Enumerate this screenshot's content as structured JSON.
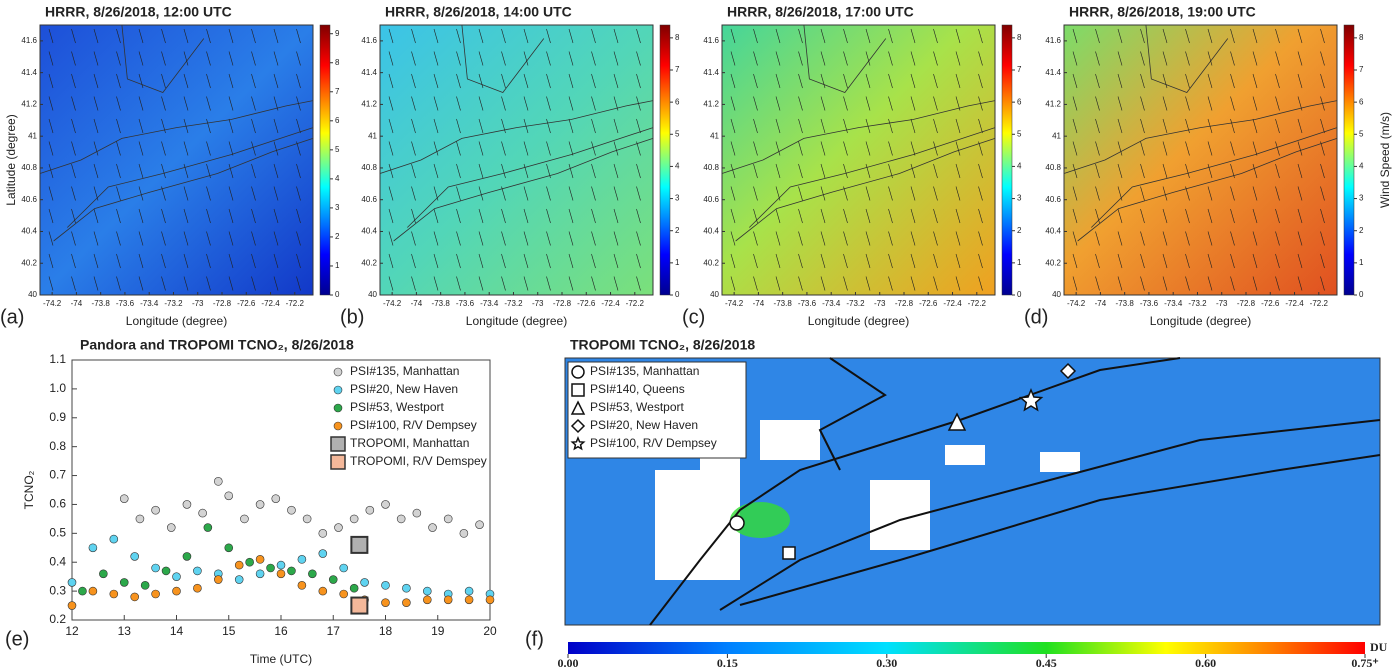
{
  "chart_data": [
    {
      "type": "map",
      "title": "HRRR, 8/26/2018, 12:00 UTC",
      "panel_label": "(a)",
      "x_label": "Longitude (degree)",
      "y_label": "Latitude (degree)",
      "xlim": [
        -74.3,
        -72.05
      ],
      "xticks": [
        -74.2,
        -74,
        -73.8,
        -73.6,
        -73.4,
        -73.2,
        -73,
        -72.8,
        -72.6,
        -72.4,
        -72.2
      ],
      "ylim": [
        40,
        41.7
      ],
      "yticks": [
        40,
        40.2,
        40.4,
        40.6,
        40.8,
        41,
        41.2,
        41.4,
        41.6
      ],
      "clim": [
        0,
        9.3
      ],
      "cticks": [
        0,
        1,
        2,
        3,
        4,
        5,
        6,
        7,
        8,
        9
      ]
    },
    {
      "type": "map",
      "title": "HRRR, 8/26/2018, 14:00 UTC",
      "panel_label": "(b)",
      "x_label": "Longitude (degree)",
      "xlim": [
        -74.3,
        -72.05
      ],
      "xticks": [
        -74.2,
        -74,
        -73.8,
        -73.6,
        -73.4,
        -73.2,
        -73,
        -72.8,
        -72.6,
        -72.4,
        -72.2
      ],
      "ylim": [
        40,
        41.7
      ],
      "yticks": [
        40,
        40.2,
        40.4,
        40.6,
        40.8,
        41,
        41.2,
        41.4,
        41.6
      ],
      "clim": [
        0,
        8.4
      ],
      "cticks": [
        0,
        1,
        2,
        3,
        4,
        5,
        6,
        7,
        8
      ]
    },
    {
      "type": "map",
      "title": "HRRR, 8/26/2018, 17:00 UTC",
      "panel_label": "(c)",
      "x_label": "Longitude (degree)",
      "xlim": [
        -74.3,
        -72.05
      ],
      "xticks": [
        -74.2,
        -74,
        -73.8,
        -73.6,
        -73.4,
        -73.2,
        -73,
        -72.8,
        -72.6,
        -72.4,
        -72.2
      ],
      "ylim": [
        40,
        41.7
      ],
      "yticks": [
        40,
        40.2,
        40.4,
        40.6,
        40.8,
        41,
        41.2,
        41.4,
        41.6
      ],
      "clim": [
        0,
        8.4
      ],
      "cticks": [
        0,
        1,
        2,
        3,
        4,
        5,
        6,
        7,
        8
      ]
    },
    {
      "type": "map",
      "title": "HRRR, 8/26/2018, 19:00 UTC",
      "panel_label": "(d)",
      "x_label": "Longitude (degree)",
      "colorbar_label": "Wind Speed (m/s)",
      "xlim": [
        -74.3,
        -72.05
      ],
      "xticks": [
        -74.2,
        -74,
        -73.8,
        -73.6,
        -73.4,
        -73.2,
        -73,
        -72.8,
        -72.6,
        -72.4,
        -72.2
      ],
      "ylim": [
        40,
        41.7
      ],
      "yticks": [
        40,
        40.2,
        40.4,
        40.6,
        40.8,
        41,
        41.2,
        41.4,
        41.6
      ],
      "clim": [
        0,
        8.4
      ],
      "cticks": [
        0,
        1,
        2,
        3,
        4,
        5,
        6,
        7,
        8
      ]
    },
    {
      "type": "scatter",
      "title": "Pandora and TROPOMI TCNO₂, 8/26/2018",
      "panel_label": "(e)",
      "x_label": "Time (UTC)",
      "y_label": "TCNO₂",
      "xlim": [
        12,
        20
      ],
      "xticks": [
        12,
        13,
        14,
        15,
        16,
        17,
        18,
        19,
        20
      ],
      "ylim": [
        0.2,
        1.1
      ],
      "yticks": [
        0.2,
        0.3,
        0.4,
        0.5,
        0.6,
        0.7,
        0.8,
        0.9,
        {
          "value": 1,
          "label": "1.0"
        },
        1.1
      ],
      "series": [
        {
          "name": "PSI#135, Manhattan",
          "color": "#d3d3d3",
          "marker": "circle",
          "x": [
            13.0,
            13.3,
            13.6,
            13.9,
            14.2,
            14.5,
            14.8,
            15.0,
            15.3,
            15.6,
            15.9,
            16.2,
            16.5,
            16.8,
            17.1,
            17.4,
            17.7,
            18.0,
            18.3,
            18.6,
            18.9,
            19.2,
            19.5,
            19.8
          ],
          "y": [
            0.62,
            0.55,
            0.58,
            0.52,
            0.6,
            0.57,
            0.68,
            0.63,
            0.55,
            0.6,
            0.62,
            0.58,
            0.55,
            0.5,
            0.52,
            0.55,
            0.58,
            0.6,
            0.55,
            0.57,
            0.52,
            0.55,
            0.5,
            0.53
          ]
        },
        {
          "name": "PSI#20, New Haven",
          "color": "#5fd3f0",
          "marker": "circle",
          "x": [
            12,
            12.4,
            12.8,
            13.2,
            13.6,
            14.0,
            14.4,
            14.8,
            15.2,
            15.6,
            16.0,
            16.4,
            16.8,
            17.2,
            17.6,
            18.0,
            18.4,
            18.8,
            19.2,
            19.6,
            20
          ],
          "y": [
            0.33,
            0.45,
            0.48,
            0.42,
            0.38,
            0.35,
            0.37,
            0.36,
            0.34,
            0.36,
            0.39,
            0.41,
            0.43,
            0.38,
            0.33,
            0.32,
            0.31,
            0.3,
            0.29,
            0.3,
            0.29
          ]
        },
        {
          "name": "PSI#53, Westport",
          "color": "#2ca84a",
          "marker": "circle",
          "x": [
            12.2,
            12.6,
            13.0,
            13.4,
            13.8,
            14.2,
            14.6,
            15.0,
            15.4,
            15.8,
            16.2,
            16.6,
            17.0,
            17.4
          ],
          "y": [
            0.3,
            0.36,
            0.33,
            0.32,
            0.37,
            0.42,
            0.52,
            0.45,
            0.4,
            0.38,
            0.37,
            0.36,
            0.34,
            0.31
          ]
        },
        {
          "name": "PSI#100, R/V Dempsey",
          "color": "#f7931e",
          "marker": "circle",
          "x": [
            12,
            12.4,
            12.8,
            13.2,
            13.6,
            14.0,
            14.4,
            14.8,
            15.2,
            15.6,
            16.0,
            16.4,
            16.8,
            17.2,
            17.6,
            18.0,
            18.4,
            18.8,
            19.2,
            19.6,
            20
          ],
          "y": [
            0.25,
            0.3,
            0.29,
            0.28,
            0.29,
            0.3,
            0.31,
            0.34,
            0.39,
            0.41,
            0.36,
            0.32,
            0.3,
            0.29,
            0.27,
            0.26,
            0.26,
            0.27,
            0.27,
            0.27,
            0.27
          ]
        },
        {
          "name": "TROPOMI, Manhattan",
          "color": "#b0b0b0",
          "marker": "square",
          "x": [
            17.5
          ],
          "y": [
            0.46
          ]
        },
        {
          "name": "TROPOMI, R/V Demspey",
          "color": "#f4b89a",
          "marker": "square",
          "x": [
            17.5
          ],
          "y": [
            0.25
          ]
        }
      ]
    },
    {
      "type": "tropomi-map",
      "title": "TROPOMI TCNO₂, 8/26/2018",
      "panel_label": "(f)",
      "unit": "DU",
      "sites": [
        "PSI#135, Manhattan",
        "PSI#140, Queens",
        "PSI#53, Westport",
        "PSI#20, New Haven",
        "PSI#100, R/V Dempsey"
      ],
      "clim": [
        0,
        0.75
      ],
      "cticks": [
        {
          "value": 0,
          "label": "0.00"
        },
        {
          "value": 0.15,
          "label": "0.15"
        },
        {
          "value": 0.3,
          "label": "0.30"
        },
        {
          "value": 0.45,
          "label": "0.45"
        },
        {
          "value": 0.6,
          "label": "0.60"
        },
        {
          "value": 0.75,
          "label": "0.75⁺"
        }
      ]
    }
  ]
}
